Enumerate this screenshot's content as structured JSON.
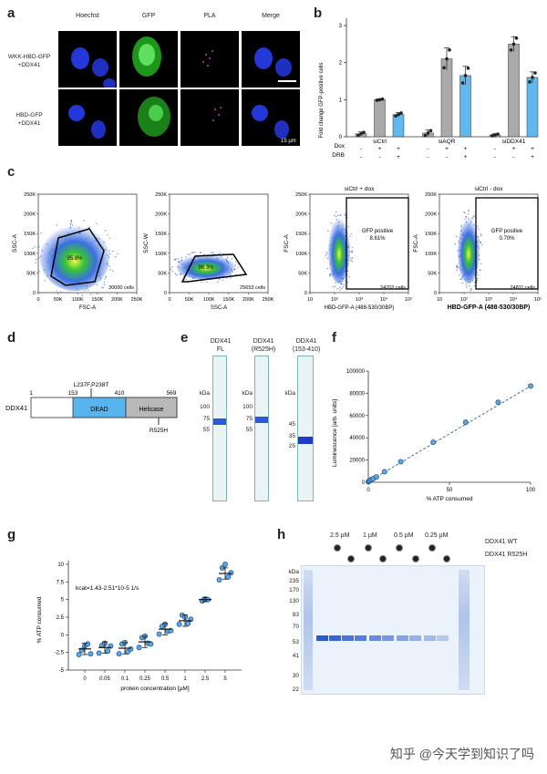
{
  "panels": {
    "a": "a",
    "b": "b",
    "c": "c",
    "d": "d",
    "e": "e",
    "f": "f",
    "g": "g",
    "h": "h"
  },
  "panel_a": {
    "columns": [
      "Hoechst",
      "GFP",
      "PLA",
      "Merge"
    ],
    "column_colors": [
      "#6f6fff",
      "#3fd13f",
      "#d046d0",
      "#444444"
    ],
    "rows": [
      "WKK-HBD-GFP\n+DDX41",
      "HBD-GFP\n+DDX41"
    ],
    "scale": "15 µm"
  },
  "panel_b": {
    "ylabel": "Fold change GFP-positive cells",
    "yticks": [
      "0",
      "1",
      "2",
      "3"
    ],
    "groups": [
      "siCtrl",
      "siAQR",
      "siDDX41"
    ],
    "row_labels": [
      "Dox",
      "DRB"
    ],
    "dox": [
      "-",
      "+",
      "+",
      "-",
      "+",
      "+",
      "-",
      "+",
      "+"
    ],
    "drb": [
      "-",
      "-",
      "+",
      "-",
      "-",
      "+",
      "-",
      "-",
      "+"
    ],
    "chart_data": {
      "type": "bar",
      "ylim": [
        0,
        3
      ],
      "categories": [
        "siCtrl -/-",
        "siCtrl +/-",
        "siCtrl +/+",
        "siAQR -/-",
        "siAQR +/-",
        "siAQR +/+",
        "siDDX41 -/-",
        "siDDX41 +/-",
        "siDDX41 +/+"
      ],
      "values": [
        0.08,
        1.0,
        0.6,
        0.1,
        2.1,
        1.65,
        0.05,
        2.5,
        1.6
      ],
      "errors": [
        0.05,
        0.02,
        0.05,
        0.08,
        0.3,
        0.25,
        0.03,
        0.2,
        0.15
      ],
      "colors": [
        "#aaaaaa",
        "#aaaaaa",
        "#5fb8ee",
        "#aaaaaa",
        "#aaaaaa",
        "#5fb8ee",
        "#aaaaaa",
        "#aaaaaa",
        "#5fb8ee"
      ]
    }
  },
  "panel_c": {
    "plots": [
      {
        "ylabel": "SSC-A",
        "xlabel": "FSC-A",
        "gate": "95.8%",
        "cells": "30000 cells"
      },
      {
        "ylabel": "SSC-W",
        "xlabel": "SSC-A",
        "gate": "96.3%",
        "cells": "25653 cells"
      },
      {
        "title": "siCtrl + dox",
        "ylabel": "FSC-A",
        "xlabel": "HBD-GFP-A (488-530/30BP)",
        "gate_title": "GFP positive",
        "gate": "8.61%",
        "cells": "24702 cells"
      },
      {
        "title": "siCtrl - dox",
        "ylabel": "FSC-A",
        "xlabel": "HBD-GFP-A (488-530/30BP)",
        "gate_title": "GFP positive",
        "gate": "0.70%",
        "cells": "24811 cells"
      }
    ],
    "yticks_lin": [
      "0",
      "50K",
      "100K",
      "150K",
      "200K",
      "250K"
    ],
    "xticks_lin": [
      "0",
      "50K",
      "100K",
      "150K",
      "200K",
      "250K"
    ],
    "yticks_fsc": [
      "0",
      "50K",
      "100K",
      "150K",
      "200K",
      "250K"
    ],
    "xticks_log": [
      "10",
      "10²",
      "10³",
      "10⁴",
      "10⁵"
    ]
  },
  "panel_d": {
    "protein": "DDX41",
    "positions": [
      "1",
      "153",
      "410",
      "569"
    ],
    "mutation_top": "L237F,P238T",
    "mutation_bottom": "R525H",
    "domains": [
      "DEAD",
      "Helicase"
    ]
  },
  "panel_e": {
    "lanes": [
      {
        "title": "DDX41\nFL",
        "kda": [
          "kDa",
          "100",
          "75",
          "55"
        ]
      },
      {
        "title": "DDX41\n(R525H)",
        "kda": [
          "kDa",
          "100",
          "75",
          "55"
        ]
      },
      {
        "title": "DDX41\n(153-410)",
        "kda": [
          "kDa",
          "45",
          "35",
          "25"
        ]
      }
    ]
  },
  "panel_f": {
    "ylabel": "Luminescence [arb. units]",
    "xlabel": "% ATP consumed",
    "yticks": [
      "0",
      "20000",
      "40000",
      "60000",
      "80000",
      "100000"
    ],
    "xticks": [
      "0",
      "50",
      "100"
    ],
    "chart_data": {
      "type": "scatter",
      "x": [
        0,
        0.5,
        1,
        2,
        3,
        5,
        10,
        20,
        40,
        60,
        80,
        100
      ],
      "y": [
        500,
        1000,
        1800,
        2500,
        3200,
        4800,
        9500,
        18500,
        36000,
        54000,
        72000,
        86500
      ],
      "xlim": [
        0,
        100
      ],
      "ylim": [
        0,
        100000
      ]
    }
  },
  "panel_g": {
    "ylabel": "% ATP consumed",
    "xlabel": "protein concentration [µM]",
    "annotation": "kcat=1.43-2.51*10-5 1/s",
    "yticks": [
      "10",
      "7.5",
      "5",
      "2.5",
      "0",
      "-2.5",
      "-5"
    ],
    "xticks": [
      "0",
      "0.05",
      "0.1",
      "0.25",
      "0.5",
      "1",
      "2.5",
      "5"
    ],
    "chart_data": {
      "type": "scatter",
      "categories": [
        "0",
        "0.05",
        "0.1",
        "0.25",
        "0.5",
        "1",
        "2.5",
        "5"
      ],
      "means": [
        -2.0,
        -1.8,
        -1.9,
        -1.0,
        0.8,
        2.0,
        5.0,
        8.7
      ],
      "errors": [
        0.8,
        0.8,
        0.8,
        0.8,
        0.8,
        0.8,
        0.3,
        0.8
      ],
      "points": [
        [
          -2.8,
          -2.2,
          -1.6,
          -1.3,
          -2.7
        ],
        [
          -2.6,
          -1.5,
          -1.2,
          -2.3,
          -1.6
        ],
        [
          -2.7,
          -1.3,
          -1.1,
          -2.4,
          -2.0
        ],
        [
          -1.8,
          -0.4,
          -0.2,
          -1.2,
          -1.3
        ],
        [
          0.1,
          1.2,
          1.5,
          0.5,
          0.6
        ],
        [
          1.5,
          2.8,
          2.5,
          1.6,
          2.2
        ],
        [
          4.8,
          5.1,
          5.0
        ],
        [
          7.8,
          9.5,
          10.0,
          8.2,
          8.8
        ]
      ],
      "ylim": [
        -5,
        10
      ]
    }
  },
  "panel_h": {
    "concentrations": [
      "2.5 µM",
      "1 µM",
      "0.5 µM",
      "0.25 µM"
    ],
    "row_labels": [
      "DDX41 WT",
      "DDX41 R525H"
    ],
    "kda": [
      "kDa",
      "235",
      "170",
      "130",
      "93",
      "70",
      "53",
      "41",
      "30",
      "22"
    ]
  },
  "watermark": "知乎 @今天学到知识了吗"
}
